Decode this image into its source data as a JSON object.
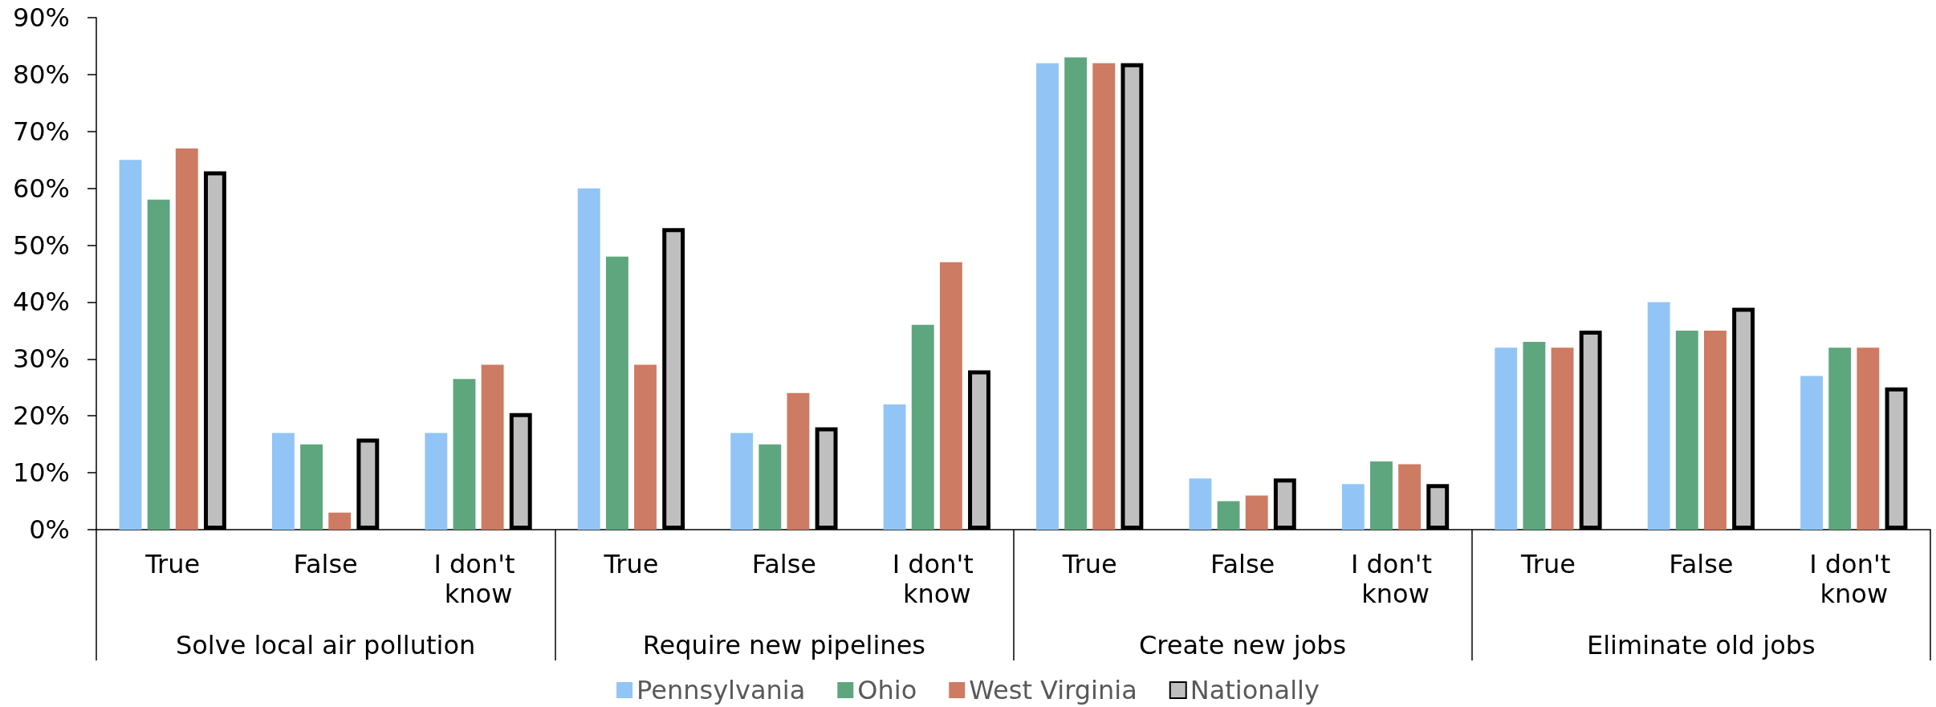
{
  "chart_data": {
    "type": "bar",
    "categories": [
      "True",
      "False",
      "I don't know",
      "True",
      "False",
      "I don't know",
      "True",
      "False",
      "I don't know",
      "True",
      "False",
      "I don't know"
    ],
    "annotations": [
      "Solve local air pollution",
      "Require new pipelines",
      "Create new jobs",
      "Eliminate old jobs"
    ],
    "series": [
      {
        "name": "Pennsylvania",
        "color": "#92c5f5",
        "values": [
          65,
          17,
          17,
          60,
          17,
          22,
          82,
          9,
          8,
          32,
          40,
          27
        ]
      },
      {
        "name": "Ohio",
        "color": "#5ea77e",
        "values": [
          58,
          15,
          26.5,
          48,
          15,
          36,
          83,
          5,
          12,
          33,
          35,
          32
        ]
      },
      {
        "name": "West Virginia",
        "color": "#cd7b62",
        "values": [
          67,
          3,
          29,
          29,
          24,
          47,
          82,
          6,
          11.5,
          32,
          35,
          32
        ]
      },
      {
        "name": "Nationally",
        "color": "#bfbfbf",
        "values": [
          63,
          16,
          20.5,
          53,
          18,
          28,
          82,
          9,
          8,
          35,
          39,
          25
        ]
      }
    ],
    "ylim": [
      0,
      90
    ],
    "yticks": [
      {
        "value": 0,
        "label": "0%"
      },
      {
        "value": 10,
        "label": "10%"
      },
      {
        "value": 20,
        "label": "20%"
      },
      {
        "value": 30,
        "label": "30%"
      },
      {
        "value": 40,
        "label": "40%"
      },
      {
        "value": 50,
        "label": "50%"
      },
      {
        "value": 60,
        "label": "60%"
      },
      {
        "value": 70,
        "label": "70%"
      },
      {
        "value": 80,
        "label": "80%"
      },
      {
        "value": 90,
        "label": "90%"
      }
    ],
    "grid": false,
    "legend": "bottom"
  }
}
